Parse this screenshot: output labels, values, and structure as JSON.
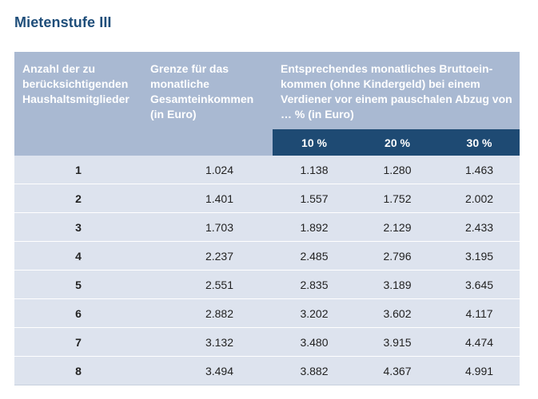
{
  "title": "Mietenstufe III",
  "header": {
    "col1": "Anzahl der zu berücksichtigenden Haushaltsmitglieder",
    "col2": "Grenze für das monatliche Gesamteinkommen (in Euro)",
    "col3": "Entsprechendes monatliches Bruttoein-kommen (ohne Kindergeld) bei einem Verdiener vor einem pauschalen Abzug von … % (in Euro)",
    "pct": [
      "10 %",
      "20 %",
      "30 %"
    ]
  },
  "rows": [
    [
      "1",
      "1.024",
      "1.138",
      "1.280",
      "1.463"
    ],
    [
      "2",
      "1.401",
      "1.557",
      "1.752",
      "2.002"
    ],
    [
      "3",
      "1.703",
      "1.892",
      "2.129",
      "2.433"
    ],
    [
      "4",
      "2.237",
      "2.485",
      "2.796",
      "3.195"
    ],
    [
      "5",
      "2.551",
      "2.835",
      "3.189",
      "3.645"
    ],
    [
      "6",
      "2.882",
      "3.202",
      "3.602",
      "4.117"
    ],
    [
      "7",
      "3.132",
      "3.480",
      "3.915",
      "4.474"
    ],
    [
      "8",
      "3.494",
      "3.882",
      "4.367",
      "4.991"
    ]
  ]
}
